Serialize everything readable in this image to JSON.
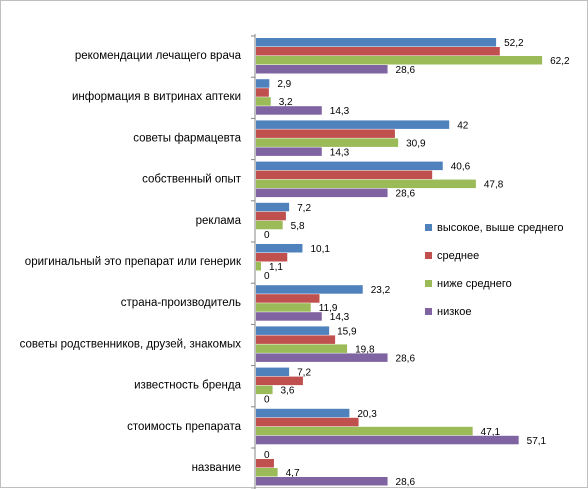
{
  "chart_data": {
    "type": "bar",
    "orientation": "horizontal",
    "title": "",
    "xlabel": "",
    "ylabel": "",
    "xlim": [
      0,
      65
    ],
    "grid": false,
    "legend_position": "right",
    "categories": [
      "рекомендации  лечащего врача",
      "информация в витринах аптеки",
      "советы фармацевта",
      "собственный опыт",
      "реклама",
      "оригинальный это препарат или генерик",
      "страна-производитель",
      "советы родственников, друзей, знакомых",
      "известность бренда",
      "стоимость препарата",
      "название"
    ],
    "series": [
      {
        "name": "высокое, выше среднего",
        "color": "#4F81BD",
        "values": [
          52.2,
          2.9,
          42,
          40.6,
          7.2,
          10.1,
          23.2,
          15.9,
          7.2,
          20.3,
          0
        ],
        "labels": [
          "52,2",
          "2,9",
          "42",
          "40,6",
          "7,2",
          "10,1",
          "23,2",
          "15,9",
          "7,2",
          "20,3",
          "0"
        ]
      },
      {
        "name": "среднее",
        "color": "#C0504D",
        "values": [
          53,
          2.8,
          30.2,
          38.3,
          6.5,
          6.8,
          13.8,
          17.2,
          10.2,
          22.3,
          3.9
        ],
        "labels": [
          "",
          "",
          "",
          "",
          "",
          "",
          "",
          "",
          "",
          "",
          ""
        ]
      },
      {
        "name": "ниже среднего",
        "color": "#9BBB59",
        "values": [
          62.2,
          3.2,
          30.9,
          47.8,
          5.8,
          1.1,
          11.9,
          19.8,
          3.6,
          47.1,
          4.7
        ],
        "labels": [
          "62,2",
          "3,2",
          "30,9",
          "47,8",
          "5,8",
          "1,1",
          "11,9",
          "19,8",
          "3,6",
          "47,1",
          "4,7"
        ]
      },
      {
        "name": "низкое",
        "color": "#8064A2",
        "values": [
          28.6,
          14.3,
          14.3,
          28.6,
          0,
          0,
          14.3,
          28.6,
          0,
          57.1,
          28.6
        ],
        "labels": [
          "28,6",
          "14,3",
          "14,3",
          "28,6",
          "0",
          "0",
          "14,3",
          "28,6",
          "0",
          "57,1",
          "28,6"
        ]
      }
    ]
  }
}
